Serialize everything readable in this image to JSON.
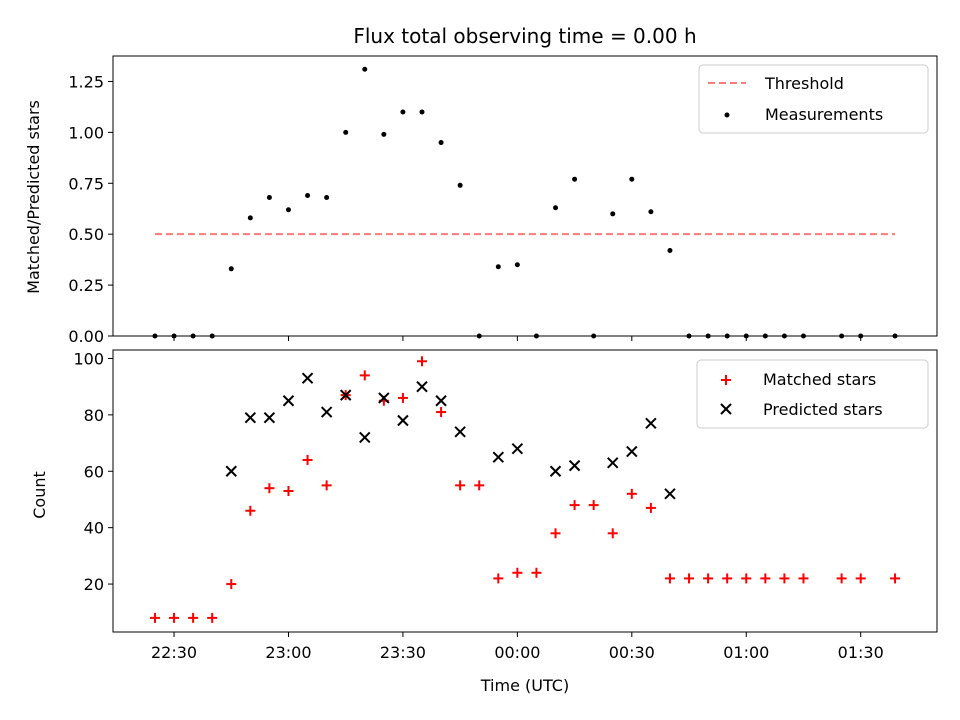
{
  "chart_data": [
    {
      "type": "scatter",
      "title": "Flux total observing time = 0.00 h",
      "xlabel": "",
      "ylabel": "Matched/Predicted stars",
      "ylim": [
        0,
        1.375
      ],
      "yticks": [
        "0.00",
        "0.25",
        "0.50",
        "0.75",
        "1.00",
        "1.25"
      ],
      "legend": {
        "position": "top-right",
        "entries": [
          "Threshold",
          "Measurements"
        ]
      },
      "threshold": {
        "name": "Threshold",
        "value": 0.5,
        "x_start": "22:25",
        "x_end": "01:39",
        "color": "#ff7a7a",
        "style": "dashed"
      },
      "series": [
        {
          "name": "Measurements",
          "color": "#000000",
          "marker": "dot",
          "x": [
            "22:25",
            "22:30",
            "22:35",
            "22:40",
            "22:45",
            "22:50",
            "22:55",
            "23:00",
            "23:05",
            "23:10",
            "23:15",
            "23:20",
            "23:25",
            "23:30",
            "23:35",
            "23:40",
            "23:45",
            "23:50",
            "23:55",
            "00:00",
            "00:05",
            "00:10",
            "00:15",
            "00:20",
            "00:25",
            "00:30",
            "00:35",
            "00:40",
            "00:45",
            "00:50",
            "00:55",
            "01:00",
            "01:05",
            "01:10",
            "01:15",
            "01:25",
            "01:30",
            "01:39"
          ],
          "y": [
            0,
            0,
            0,
            0,
            0.33,
            0.58,
            0.68,
            0.62,
            0.69,
            0.68,
            1.0,
            1.31,
            0.99,
            1.1,
            1.1,
            0.95,
            0.74,
            0,
            0.34,
            0.35,
            0,
            0.63,
            0.77,
            0,
            0.6,
            0.77,
            0.61,
            0.42,
            0,
            0,
            0,
            0,
            0,
            0,
            0,
            0,
            0,
            0
          ]
        }
      ]
    },
    {
      "type": "scatter",
      "title": "",
      "xlabel": "Time (UTC)",
      "ylabel": "Count",
      "ylim": [
        3,
        103
      ],
      "yticks": [
        "20",
        "40",
        "60",
        "80",
        "100"
      ],
      "xticks": [
        "22:30",
        "23:00",
        "23:30",
        "00:00",
        "00:30",
        "01:00",
        "01:30"
      ],
      "legend": {
        "position": "top-right",
        "entries": [
          "Matched stars",
          "Predicted stars"
        ]
      },
      "series": [
        {
          "name": "Matched stars",
          "color": "#ff0000",
          "marker": "plus",
          "x": [
            "22:25",
            "22:30",
            "22:35",
            "22:40",
            "22:45",
            "22:50",
            "22:55",
            "23:00",
            "23:05",
            "23:10",
            "23:15",
            "23:20",
            "23:25",
            "23:30",
            "23:35",
            "23:40",
            "23:45",
            "23:50",
            "23:55",
            "00:00",
            "00:05",
            "00:10",
            "00:15",
            "00:20",
            "00:25",
            "00:30",
            "00:35",
            "00:40",
            "00:45",
            "00:50",
            "00:55",
            "01:00",
            "01:05",
            "01:10",
            "01:15",
            "01:25",
            "01:30",
            "01:39"
          ],
          "y": [
            8,
            8,
            8,
            8,
            20,
            46,
            54,
            53,
            64,
            55,
            87,
            94,
            85,
            86,
            99,
            81,
            55,
            55,
            22,
            24,
            24,
            38,
            48,
            48,
            38,
            52,
            47,
            22,
            22,
            22,
            22,
            22,
            22,
            22,
            22,
            22,
            22,
            22
          ]
        },
        {
          "name": "Predicted stars",
          "color": "#000000",
          "marker": "x",
          "x": [
            "22:45",
            "22:50",
            "22:55",
            "23:00",
            "23:05",
            "23:10",
            "23:15",
            "23:20",
            "23:25",
            "23:30",
            "23:35",
            "23:40",
            "23:45",
            "23:55",
            "00:00",
            "00:10",
            "00:15",
            "00:25",
            "00:30",
            "00:35",
            "00:40"
          ],
          "y": [
            60,
            79,
            79,
            85,
            93,
            81,
            87,
            72,
            86,
            78,
            90,
            85,
            74,
            65,
            68,
            60,
            62,
            63,
            67,
            77,
            52
          ]
        }
      ]
    }
  ]
}
